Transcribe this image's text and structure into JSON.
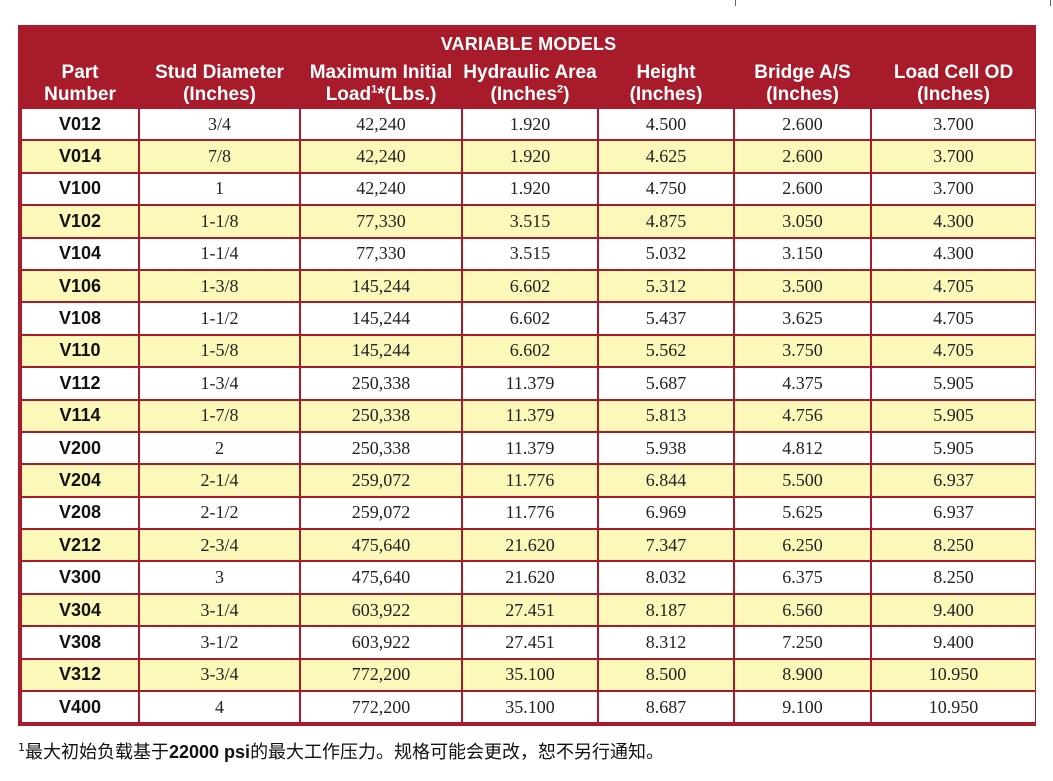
{
  "table": {
    "title": "VARIABLE MODELS",
    "headers": [
      {
        "line1": "Part",
        "line2": "Number"
      },
      {
        "line1": "Stud Diameter",
        "line2": "(Inches)"
      },
      {
        "line1": "Maximum Initial",
        "line2a": "Load",
        "sup": "1",
        "line2b": "*(Lbs.)"
      },
      {
        "line1": "Hydraulic Area",
        "line2a": "(Inches",
        "sup": "2",
        "line2b": ")"
      },
      {
        "line1": "Height",
        "line2": "(Inches)"
      },
      {
        "line1": "Bridge A/S",
        "line2": "(Inches)"
      },
      {
        "line1": "Load Cell OD",
        "line2": "(Inches)"
      }
    ],
    "rows": [
      [
        "V012",
        "3/4",
        "42,240",
        "1.920",
        "4.500",
        "2.600",
        "3.700"
      ],
      [
        "V014",
        "7/8",
        "42,240",
        "1.920",
        "4.625",
        "2.600",
        "3.700"
      ],
      [
        "V100",
        "1",
        "42,240",
        "1.920",
        "4.750",
        "2.600",
        "3.700"
      ],
      [
        "V102",
        "1-1/8",
        "77,330",
        "3.515",
        "4.875",
        "3.050",
        "4.300"
      ],
      [
        "V104",
        "1-1/4",
        "77,330",
        "3.515",
        "5.032",
        "3.150",
        "4.300"
      ],
      [
        "V106",
        "1-3/8",
        "145,244",
        "6.602",
        "5.312",
        "3.500",
        "4.705"
      ],
      [
        "V108",
        "1-1/2",
        "145,244",
        "6.602",
        "5.437",
        "3.625",
        "4.705"
      ],
      [
        "V110",
        "1-5/8",
        "145,244",
        "6.602",
        "5.562",
        "3.750",
        "4.705"
      ],
      [
        "V112",
        "1-3/4",
        "250,338",
        "11.379",
        "5.687",
        "4.375",
        "5.905"
      ],
      [
        "V114",
        "1-7/8",
        "250,338",
        "11.379",
        "5.813",
        "4.756",
        "5.905"
      ],
      [
        "V200",
        "2",
        "250,338",
        "11.379",
        "5.938",
        "4.812",
        "5.905"
      ],
      [
        "V204",
        "2-1/4",
        "259,072",
        "11.776",
        "6.844",
        "5.500",
        "6.937"
      ],
      [
        "V208",
        "2-1/2",
        "259,072",
        "11.776",
        "6.969",
        "5.625",
        "6.937"
      ],
      [
        "V212",
        "2-3/4",
        "475,640",
        "21.620",
        "7.347",
        "6.250",
        "8.250"
      ],
      [
        "V300",
        "3",
        "475,640",
        "21.620",
        "8.032",
        "6.375",
        "8.250"
      ],
      [
        "V304",
        "3-1/4",
        "603,922",
        "27.451",
        "8.187",
        "6.560",
        "9.400"
      ],
      [
        "V308",
        "3-1/2",
        "603,922",
        "27.451",
        "8.312",
        "7.250",
        "9.400"
      ],
      [
        "V312",
        "3-3/4",
        "772,200",
        "35.100",
        "8.500",
        "8.900",
        "10.950"
      ],
      [
        "V400",
        "4",
        "772,200",
        "35.100",
        "8.687",
        "9.100",
        "10.950"
      ]
    ]
  },
  "footnote": {
    "mark": "1",
    "text_before": "最大初始负载基于",
    "bold": "22000 psi",
    "text_after": "的最大工作压力。规格可能会更改，恕不另行通知。"
  },
  "colors": {
    "header_red": "#a81b2a",
    "row_highlight": "#fbf8b9",
    "row_plain": "#ffffff"
  }
}
